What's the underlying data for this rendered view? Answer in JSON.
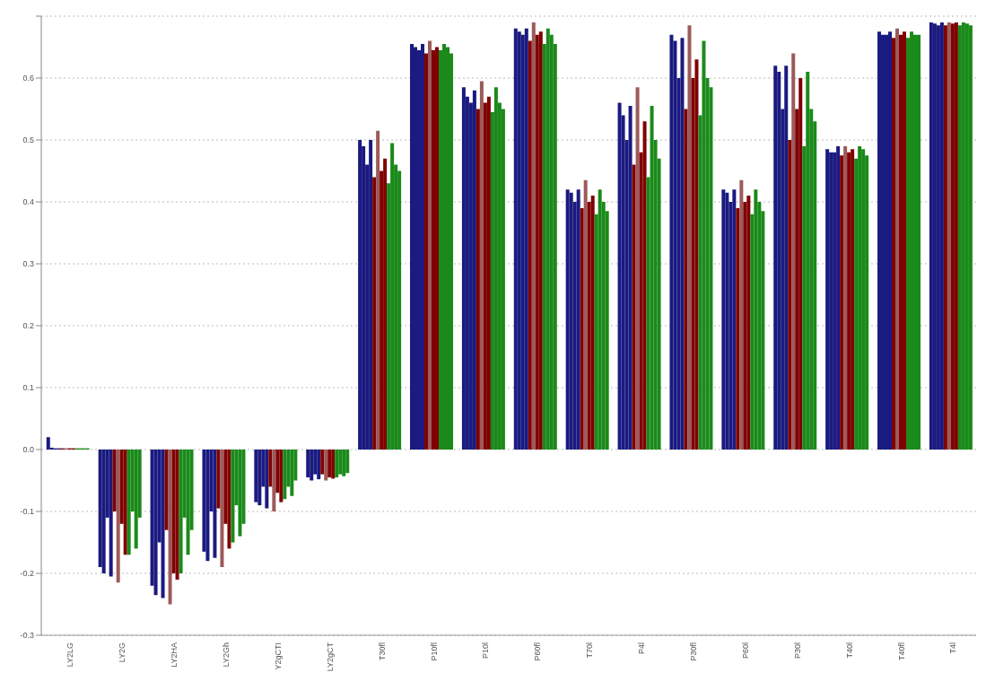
{
  "chart_data": {
    "type": "bar",
    "categories": [
      "LY2LG",
      "LY2G",
      "LY2HA",
      "LY2Gh",
      "Y2gCTI",
      "LY2gCT",
      "T30fl",
      "P10fl",
      "P10l",
      "P60fl",
      "T70l",
      "P4l",
      "P30fl",
      "P60l",
      "P30l",
      "T40l",
      "T40fl",
      "T4l"
    ],
    "series": [
      {
        "color": "#1a1a80",
        "values": [
          0.02,
          -0.19,
          -0.22,
          -0.165,
          -0.085,
          -0.045,
          0.5,
          0.655,
          0.585,
          0.68,
          0.42,
          0.56,
          0.67,
          0.42,
          0.62,
          0.485,
          0.675,
          0.69
        ]
      },
      {
        "color": "#1a1a80",
        "values": [
          0.003,
          -0.2,
          -0.235,
          -0.18,
          -0.09,
          -0.05,
          0.49,
          0.65,
          0.57,
          0.675,
          0.415,
          0.54,
          0.66,
          0.415,
          0.61,
          0.48,
          0.67,
          0.688
        ]
      },
      {
        "color": "#1a1a80",
        "values": [
          0.002,
          -0.11,
          -0.15,
          -0.1,
          -0.06,
          -0.04,
          0.46,
          0.645,
          0.56,
          0.67,
          0.4,
          0.5,
          0.6,
          0.4,
          0.55,
          0.48,
          0.67,
          0.685
        ]
      },
      {
        "color": "#1a1a80",
        "values": [
          0.002,
          -0.205,
          -0.24,
          -0.175,
          -0.095,
          -0.048,
          0.5,
          0.655,
          0.58,
          0.68,
          0.42,
          0.555,
          0.665,
          0.42,
          0.62,
          0.49,
          0.675,
          0.69
        ]
      },
      {
        "color": "#800000",
        "values": [
          0.002,
          -0.1,
          -0.13,
          -0.095,
          -0.06,
          -0.04,
          0.44,
          0.64,
          0.55,
          0.66,
          0.39,
          0.46,
          0.55,
          0.39,
          0.5,
          0.475,
          0.665,
          0.685
        ]
      },
      {
        "color": "#9c5a5a",
        "values": [
          0.002,
          -0.215,
          -0.25,
          -0.19,
          -0.1,
          -0.05,
          0.515,
          0.66,
          0.595,
          0.69,
          0.435,
          0.585,
          0.685,
          0.435,
          0.64,
          0.49,
          0.68,
          0.69
        ]
      },
      {
        "color": "#800000",
        "values": [
          0.002,
          -0.12,
          -0.2,
          -0.12,
          -0.07,
          -0.045,
          0.45,
          0.645,
          0.56,
          0.67,
          0.4,
          0.48,
          0.6,
          0.4,
          0.55,
          0.48,
          0.67,
          0.688
        ]
      },
      {
        "color": "#800000",
        "values": [
          0.002,
          -0.17,
          -0.21,
          -0.16,
          -0.085,
          -0.047,
          0.47,
          0.65,
          0.57,
          0.675,
          0.41,
          0.53,
          0.63,
          0.41,
          0.6,
          0.485,
          0.675,
          0.69
        ]
      },
      {
        "color": "#1a8a1a",
        "values": [
          0.002,
          -0.17,
          -0.2,
          -0.15,
          -0.08,
          -0.045,
          0.43,
          0.645,
          0.545,
          0.655,
          0.38,
          0.44,
          0.54,
          0.38,
          0.49,
          0.47,
          0.665,
          0.685
        ]
      },
      {
        "color": "#1a8a1a",
        "values": [
          0.002,
          -0.1,
          -0.11,
          -0.09,
          -0.06,
          -0.04,
          0.495,
          0.655,
          0.585,
          0.68,
          0.42,
          0.555,
          0.66,
          0.42,
          0.61,
          0.49,
          0.675,
          0.69
        ]
      },
      {
        "color": "#1a8a1a",
        "values": [
          0.002,
          -0.16,
          -0.17,
          -0.14,
          -0.075,
          -0.043,
          0.46,
          0.65,
          0.56,
          0.67,
          0.4,
          0.5,
          0.6,
          0.4,
          0.55,
          0.485,
          0.67,
          0.688
        ]
      },
      {
        "color": "#1a8a1a",
        "values": [
          0.002,
          -0.11,
          -0.13,
          -0.12,
          -0.05,
          -0.038,
          0.45,
          0.64,
          0.55,
          0.655,
          0.385,
          0.47,
          0.585,
          0.385,
          0.53,
          0.475,
          0.67,
          0.685
        ]
      }
    ],
    "ylim": [
      -0.3,
      0.7
    ],
    "yticks": [
      -0.3,
      -0.2,
      -0.1,
      {
        "value": 0,
        "label": "0.0"
      },
      0.1,
      0.2,
      0.3,
      0.4,
      0.5,
      0.6,
      {
        "value": 0.7,
        "label": null
      }
    ],
    "grid": "y",
    "legend": false
  }
}
